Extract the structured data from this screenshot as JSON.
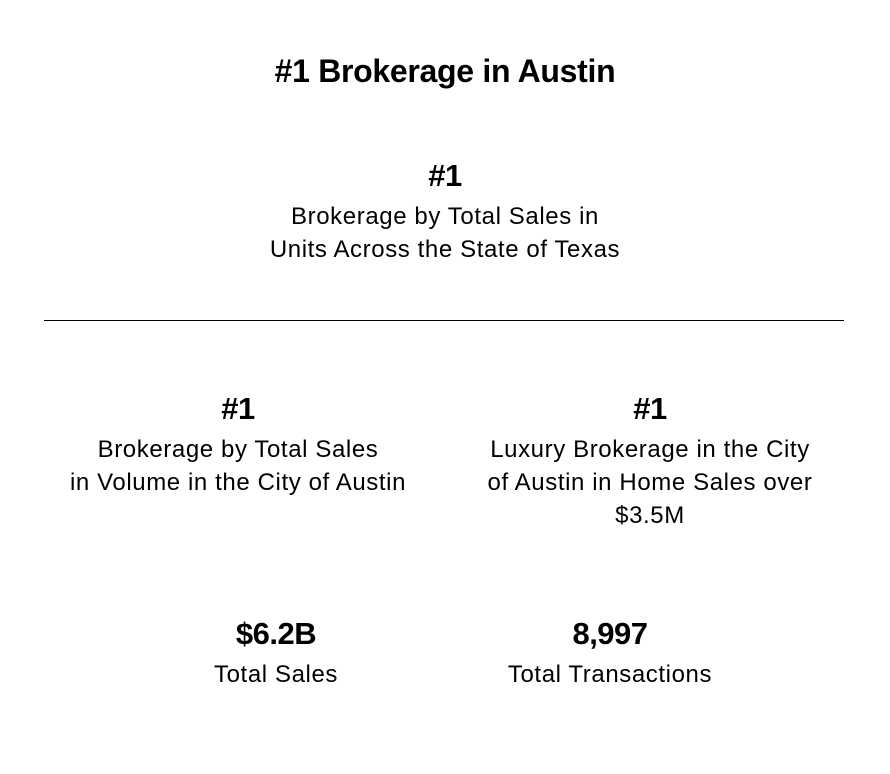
{
  "page": {
    "title": "#1 Brokerage in Austin"
  },
  "stats": {
    "state_units": {
      "value": "#1",
      "description": "Brokerage by Total Sales in\nUnits Across the State of Texas"
    },
    "city_volume": {
      "value": "#1",
      "description": "Brokerage by Total Sales\nin Volume in the City of Austin"
    },
    "luxury": {
      "value": "#1",
      "description": "Luxury Brokerage in the City\nof Austin in Home Sales over\n$3.5M"
    },
    "total_sales": {
      "value": "$6.2B",
      "label": "Total Sales"
    },
    "total_transactions": {
      "value": "8,997",
      "label": "Total Transactions"
    }
  }
}
